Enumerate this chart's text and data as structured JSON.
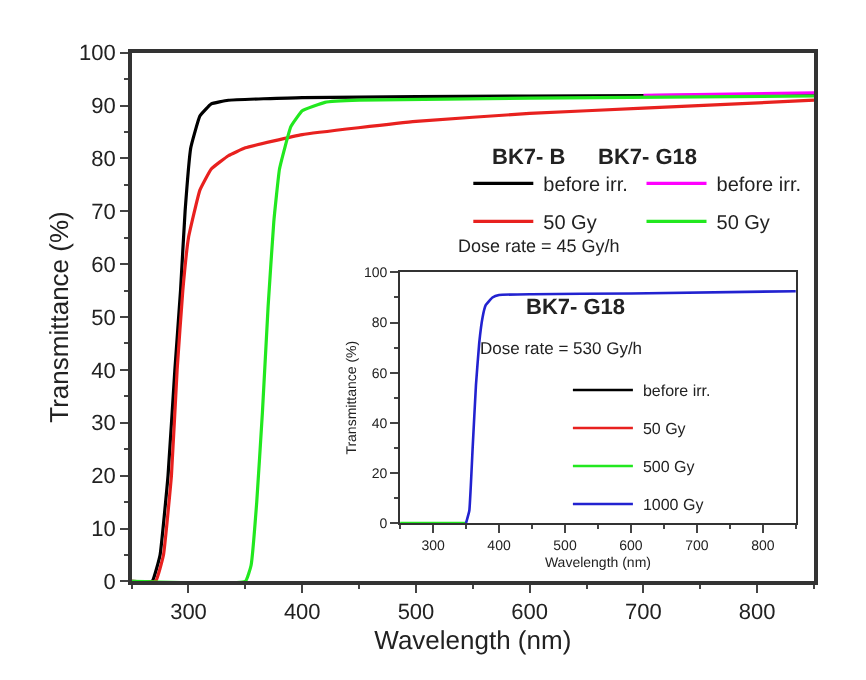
{
  "chart_data": [
    {
      "type": "line",
      "xlabel": "Wavelength (nm)",
      "ylabel": "Transmittance (%)",
      "xlim": [
        250,
        850
      ],
      "ylim": [
        0,
        100
      ],
      "xticks": [
        300,
        400,
        500,
        600,
        700,
        800
      ],
      "yticks": [
        0,
        10,
        20,
        30,
        40,
        50,
        60,
        70,
        80,
        90,
        100
      ],
      "legend": "top right",
      "annotations": [
        "BK7- B",
        "BK7- G18",
        "Dose rate = 45 Gy/h"
      ],
      "series": [
        {
          "name": "before irr.",
          "color": "#000000",
          "x": [
            250,
            268,
            275,
            282,
            288,
            293,
            297,
            302,
            310,
            320,
            335,
            400,
            600,
            850
          ],
          "values": [
            0,
            0,
            5,
            20,
            40,
            55,
            70,
            82,
            88,
            90.3,
            91,
            91.5,
            91.8,
            92
          ]
        },
        {
          "name": "50 Gy",
          "color": "#e8211f",
          "x": [
            250,
            271,
            278,
            285,
            290,
            295,
            300,
            310,
            320,
            335,
            350,
            400,
            500,
            600,
            700,
            850
          ],
          "values": [
            0,
            0,
            5,
            20,
            40,
            55,
            65,
            74,
            78,
            80.5,
            82,
            84.5,
            87,
            88.5,
            89.5,
            91
          ]
        },
        {
          "name": "before irr.",
          "color": "#ff00ff",
          "x": [
            700,
            850
          ],
          "values": [
            91.9,
            92.4
          ]
        },
        {
          "name": "50 Gy",
          "color": "#22e81f",
          "x": [
            250,
            350,
            355,
            360,
            365,
            370,
            375,
            380,
            390,
            400,
            420,
            450,
            600,
            850
          ],
          "values": [
            0,
            0,
            3,
            15,
            32,
            52,
            68,
            78,
            86,
            89,
            90.6,
            91,
            91.4,
            91.8
          ]
        }
      ]
    },
    {
      "type": "line",
      "title": "BK7- G18",
      "subtitle": "Dose rate = 530 Gy/h",
      "xlabel": "Wavelength (nm)",
      "ylabel": "Transmittance (%)",
      "xlim": [
        250,
        850
      ],
      "ylim": [
        0,
        100
      ],
      "xticks": [
        300,
        400,
        500,
        600,
        700,
        800
      ],
      "yticks": [
        0,
        20,
        40,
        60,
        80,
        100
      ],
      "legend": "bottom right",
      "series": [
        {
          "name": "before irr.",
          "color": "#000000"
        },
        {
          "name": "50 Gy",
          "color": "#e8211f"
        },
        {
          "name": "500 Gy",
          "color": "#22e81f",
          "x": [
            250,
            350
          ],
          "values": [
            0,
            0
          ]
        },
        {
          "name": "1000 Gy",
          "color": "#2222d0",
          "x": [
            350,
            355,
            360,
            365,
            370,
            375,
            380,
            390,
            400,
            450,
            600,
            850
          ],
          "values": [
            0,
            5,
            30,
            55,
            72,
            82,
            87,
            90,
            91,
            91.3,
            91.6,
            92.5
          ]
        }
      ]
    }
  ]
}
